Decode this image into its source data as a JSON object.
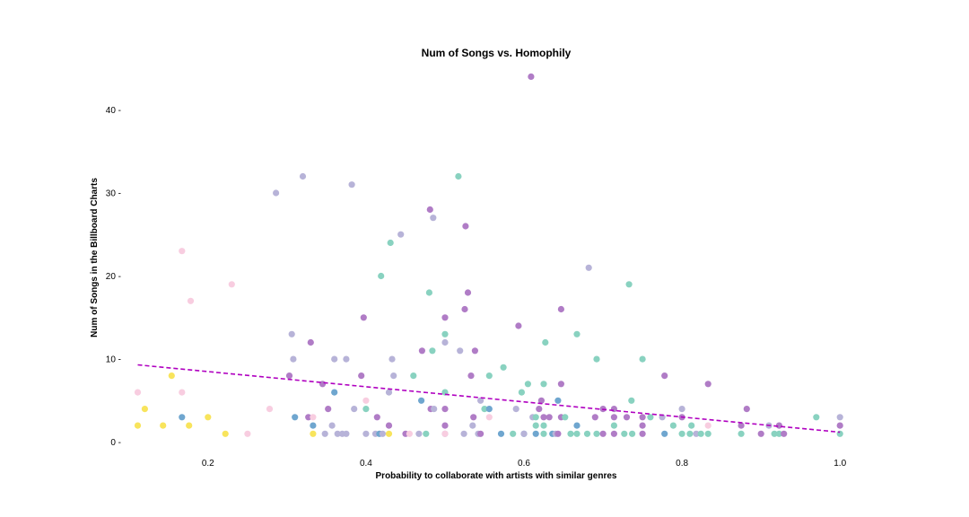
{
  "chart_data": {
    "type": "scatter",
    "title": "Num of Songs vs. Homophily",
    "xlabel": "Probability to collaborate with artists with similar genres",
    "ylabel": "Num of Songs in the Billboard Charts",
    "xlim": [
      0.09,
      1.01
    ],
    "ylim": [
      -0.8,
      44.8
    ],
    "xticks": [
      0.2,
      0.4,
      0.6,
      0.8,
      1.0
    ],
    "xtick_labels": [
      "0.2",
      "0.4",
      "0.6",
      "0.8",
      "1.0"
    ],
    "yticks": [
      0,
      10,
      20,
      30,
      40
    ],
    "ytick_labels": [
      "0 -",
      "10 -",
      "20 -",
      "30 -",
      "40 -"
    ],
    "grid": false,
    "legend": "none",
    "trendline": {
      "x": [
        0.111,
        1.0
      ],
      "y": [
        9.3,
        1.2
      ],
      "color": "#b000c0",
      "style": "dashed"
    },
    "colors": {
      "purple": "#b07cc6",
      "teal": "#89d2c0",
      "lavender": "#b7b3d8",
      "steel": "#6fa6cf",
      "pink": "#f8cde0",
      "yellow": "#f8e45c"
    },
    "points": [
      {
        "x": 0.111,
        "y": 6,
        "c": "pink"
      },
      {
        "x": 0.111,
        "y": 2,
        "c": "yellow"
      },
      {
        "x": 0.12,
        "y": 4,
        "c": "yellow"
      },
      {
        "x": 0.143,
        "y": 2,
        "c": "yellow"
      },
      {
        "x": 0.154,
        "y": 8,
        "c": "yellow"
      },
      {
        "x": 0.167,
        "y": 23,
        "c": "pink"
      },
      {
        "x": 0.167,
        "y": 6,
        "c": "pink"
      },
      {
        "x": 0.167,
        "y": 3,
        "c": "steel"
      },
      {
        "x": 0.176,
        "y": 2,
        "c": "yellow"
      },
      {
        "x": 0.178,
        "y": 17,
        "c": "pink"
      },
      {
        "x": 0.2,
        "y": 3,
        "c": "yellow"
      },
      {
        "x": 0.222,
        "y": 1,
        "c": "yellow"
      },
      {
        "x": 0.23,
        "y": 19,
        "c": "pink"
      },
      {
        "x": 0.25,
        "y": 1,
        "c": "pink"
      },
      {
        "x": 0.278,
        "y": 4,
        "c": "pink"
      },
      {
        "x": 0.286,
        "y": 30,
        "c": "lavender"
      },
      {
        "x": 0.303,
        "y": 8,
        "c": "purple"
      },
      {
        "x": 0.306,
        "y": 13,
        "c": "lavender"
      },
      {
        "x": 0.308,
        "y": 10,
        "c": "lavender"
      },
      {
        "x": 0.31,
        "y": 3,
        "c": "steel"
      },
      {
        "x": 0.32,
        "y": 32,
        "c": "lavender"
      },
      {
        "x": 0.327,
        "y": 3,
        "c": "purple"
      },
      {
        "x": 0.33,
        "y": 12,
        "c": "purple"
      },
      {
        "x": 0.333,
        "y": 3,
        "c": "pink"
      },
      {
        "x": 0.333,
        "y": 1,
        "c": "yellow"
      },
      {
        "x": 0.333,
        "y": 2,
        "c": "steel"
      },
      {
        "x": 0.345,
        "y": 7,
        "c": "purple"
      },
      {
        "x": 0.348,
        "y": 1,
        "c": "lavender"
      },
      {
        "x": 0.352,
        "y": 4,
        "c": "purple"
      },
      {
        "x": 0.357,
        "y": 2,
        "c": "lavender"
      },
      {
        "x": 0.36,
        "y": 10,
        "c": "lavender"
      },
      {
        "x": 0.36,
        "y": 6,
        "c": "steel"
      },
      {
        "x": 0.364,
        "y": 1,
        "c": "lavender"
      },
      {
        "x": 0.37,
        "y": 1,
        "c": "lavender"
      },
      {
        "x": 0.375,
        "y": 10,
        "c": "lavender"
      },
      {
        "x": 0.375,
        "y": 1,
        "c": "lavender"
      },
      {
        "x": 0.382,
        "y": 31,
        "c": "lavender"
      },
      {
        "x": 0.385,
        "y": 4,
        "c": "lavender"
      },
      {
        "x": 0.394,
        "y": 8,
        "c": "purple"
      },
      {
        "x": 0.397,
        "y": 15,
        "c": "purple"
      },
      {
        "x": 0.4,
        "y": 5,
        "c": "pink"
      },
      {
        "x": 0.4,
        "y": 4,
        "c": "teal"
      },
      {
        "x": 0.4,
        "y": 1,
        "c": "lavender"
      },
      {
        "x": 0.412,
        "y": 1,
        "c": "lavender"
      },
      {
        "x": 0.414,
        "y": 3,
        "c": "purple"
      },
      {
        "x": 0.417,
        "y": 1,
        "c": "steel"
      },
      {
        "x": 0.419,
        "y": 20,
        "c": "teal"
      },
      {
        "x": 0.421,
        "y": 1,
        "c": "lavender"
      },
      {
        "x": 0.429,
        "y": 6,
        "c": "lavender"
      },
      {
        "x": 0.429,
        "y": 2,
        "c": "purple"
      },
      {
        "x": 0.429,
        "y": 1,
        "c": "yellow"
      },
      {
        "x": 0.431,
        "y": 24,
        "c": "teal"
      },
      {
        "x": 0.433,
        "y": 10,
        "c": "lavender"
      },
      {
        "x": 0.435,
        "y": 8,
        "c": "lavender"
      },
      {
        "x": 0.444,
        "y": 25,
        "c": "lavender"
      },
      {
        "x": 0.45,
        "y": 1,
        "c": "purple"
      },
      {
        "x": 0.455,
        "y": 1,
        "c": "pink"
      },
      {
        "x": 0.46,
        "y": 8,
        "c": "teal"
      },
      {
        "x": 0.467,
        "y": 1,
        "c": "lavender"
      },
      {
        "x": 0.47,
        "y": 5,
        "c": "steel"
      },
      {
        "x": 0.471,
        "y": 11,
        "c": "purple"
      },
      {
        "x": 0.476,
        "y": 1,
        "c": "teal"
      },
      {
        "x": 0.48,
        "y": 18,
        "c": "teal"
      },
      {
        "x": 0.481,
        "y": 28,
        "c": "purple"
      },
      {
        "x": 0.482,
        "y": 4,
        "c": "purple"
      },
      {
        "x": 0.484,
        "y": 11,
        "c": "teal"
      },
      {
        "x": 0.485,
        "y": 27,
        "c": "lavender"
      },
      {
        "x": 0.486,
        "y": 4,
        "c": "lavender"
      },
      {
        "x": 0.5,
        "y": 15,
        "c": "purple"
      },
      {
        "x": 0.5,
        "y": 13,
        "c": "teal"
      },
      {
        "x": 0.5,
        "y": 12,
        "c": "lavender"
      },
      {
        "x": 0.5,
        "y": 6,
        "c": "teal"
      },
      {
        "x": 0.5,
        "y": 4,
        "c": "purple"
      },
      {
        "x": 0.5,
        "y": 2,
        "c": "purple"
      },
      {
        "x": 0.5,
        "y": 1,
        "c": "lavender"
      },
      {
        "x": 0.5,
        "y": 1,
        "c": "pink"
      },
      {
        "x": 0.517,
        "y": 32,
        "c": "teal"
      },
      {
        "x": 0.519,
        "y": 11,
        "c": "lavender"
      },
      {
        "x": 0.524,
        "y": 1,
        "c": "lavender"
      },
      {
        "x": 0.525,
        "y": 16,
        "c": "purple"
      },
      {
        "x": 0.526,
        "y": 26,
        "c": "purple"
      },
      {
        "x": 0.529,
        "y": 18,
        "c": "purple"
      },
      {
        "x": 0.533,
        "y": 8,
        "c": "purple"
      },
      {
        "x": 0.535,
        "y": 2,
        "c": "lavender"
      },
      {
        "x": 0.536,
        "y": 3,
        "c": "purple"
      },
      {
        "x": 0.538,
        "y": 11,
        "c": "purple"
      },
      {
        "x": 0.542,
        "y": 1,
        "c": "lavender"
      },
      {
        "x": 0.545,
        "y": 5,
        "c": "lavender"
      },
      {
        "x": 0.545,
        "y": 1,
        "c": "purple"
      },
      {
        "x": 0.55,
        "y": 4,
        "c": "teal"
      },
      {
        "x": 0.556,
        "y": 8,
        "c": "teal"
      },
      {
        "x": 0.556,
        "y": 4,
        "c": "steel"
      },
      {
        "x": 0.556,
        "y": 3,
        "c": "pink"
      },
      {
        "x": 0.571,
        "y": 1,
        "c": "steel"
      },
      {
        "x": 0.574,
        "y": 9,
        "c": "teal"
      },
      {
        "x": 0.586,
        "y": 1,
        "c": "teal"
      },
      {
        "x": 0.59,
        "y": 4,
        "c": "lavender"
      },
      {
        "x": 0.593,
        "y": 14,
        "c": "purple"
      },
      {
        "x": 0.597,
        "y": 6,
        "c": "teal"
      },
      {
        "x": 0.6,
        "y": 1,
        "c": "steel"
      },
      {
        "x": 0.6,
        "y": 1,
        "c": "lavender"
      },
      {
        "x": 0.605,
        "y": 7,
        "c": "teal"
      },
      {
        "x": 0.609,
        "y": 44,
        "c": "purple"
      },
      {
        "x": 0.611,
        "y": 3,
        "c": "lavender"
      },
      {
        "x": 0.615,
        "y": 3,
        "c": "teal"
      },
      {
        "x": 0.615,
        "y": 2,
        "c": "teal"
      },
      {
        "x": 0.615,
        "y": 1,
        "c": "steel"
      },
      {
        "x": 0.619,
        "y": 4,
        "c": "purple"
      },
      {
        "x": 0.622,
        "y": 5,
        "c": "purple"
      },
      {
        "x": 0.625,
        "y": 7,
        "c": "teal"
      },
      {
        "x": 0.625,
        "y": 3,
        "c": "purple"
      },
      {
        "x": 0.625,
        "y": 2,
        "c": "teal"
      },
      {
        "x": 0.625,
        "y": 1,
        "c": "teal"
      },
      {
        "x": 0.627,
        "y": 12,
        "c": "teal"
      },
      {
        "x": 0.632,
        "y": 3,
        "c": "purple"
      },
      {
        "x": 0.636,
        "y": 1,
        "c": "steel"
      },
      {
        "x": 0.64,
        "y": 1,
        "c": "lavender"
      },
      {
        "x": 0.643,
        "y": 5,
        "c": "steel"
      },
      {
        "x": 0.643,
        "y": 1,
        "c": "purple"
      },
      {
        "x": 0.647,
        "y": 16,
        "c": "purple"
      },
      {
        "x": 0.647,
        "y": 7,
        "c": "purple"
      },
      {
        "x": 0.647,
        "y": 3,
        "c": "purple"
      },
      {
        "x": 0.652,
        "y": 3,
        "c": "teal"
      },
      {
        "x": 0.659,
        "y": 1,
        "c": "teal"
      },
      {
        "x": 0.667,
        "y": 13,
        "c": "teal"
      },
      {
        "x": 0.667,
        "y": 2,
        "c": "steel"
      },
      {
        "x": 0.667,
        "y": 1,
        "c": "teal"
      },
      {
        "x": 0.68,
        "y": 1,
        "c": "teal"
      },
      {
        "x": 0.682,
        "y": 21,
        "c": "lavender"
      },
      {
        "x": 0.69,
        "y": 3,
        "c": "purple"
      },
      {
        "x": 0.692,
        "y": 10,
        "c": "teal"
      },
      {
        "x": 0.692,
        "y": 1,
        "c": "teal"
      },
      {
        "x": 0.7,
        "y": 4,
        "c": "purple"
      },
      {
        "x": 0.7,
        "y": 1,
        "c": "purple"
      },
      {
        "x": 0.714,
        "y": 4,
        "c": "purple"
      },
      {
        "x": 0.714,
        "y": 3,
        "c": "purple"
      },
      {
        "x": 0.714,
        "y": 2,
        "c": "teal"
      },
      {
        "x": 0.714,
        "y": 1,
        "c": "purple"
      },
      {
        "x": 0.727,
        "y": 1,
        "c": "teal"
      },
      {
        "x": 0.73,
        "y": 3,
        "c": "purple"
      },
      {
        "x": 0.733,
        "y": 19,
        "c": "teal"
      },
      {
        "x": 0.736,
        "y": 5,
        "c": "teal"
      },
      {
        "x": 0.737,
        "y": 1,
        "c": "teal"
      },
      {
        "x": 0.75,
        "y": 10,
        "c": "teal"
      },
      {
        "x": 0.75,
        "y": 3,
        "c": "purple"
      },
      {
        "x": 0.75,
        "y": 2,
        "c": "purple"
      },
      {
        "x": 0.75,
        "y": 1,
        "c": "purple"
      },
      {
        "x": 0.76,
        "y": 3,
        "c": "teal"
      },
      {
        "x": 0.775,
        "y": 3,
        "c": "lavender"
      },
      {
        "x": 0.778,
        "y": 8,
        "c": "purple"
      },
      {
        "x": 0.778,
        "y": 1,
        "c": "steel"
      },
      {
        "x": 0.789,
        "y": 2,
        "c": "teal"
      },
      {
        "x": 0.8,
        "y": 4,
        "c": "lavender"
      },
      {
        "x": 0.8,
        "y": 3,
        "c": "purple"
      },
      {
        "x": 0.8,
        "y": 1,
        "c": "teal"
      },
      {
        "x": 0.81,
        "y": 1,
        "c": "teal"
      },
      {
        "x": 0.812,
        "y": 2,
        "c": "teal"
      },
      {
        "x": 0.818,
        "y": 1,
        "c": "lavender"
      },
      {
        "x": 0.824,
        "y": 1,
        "c": "teal"
      },
      {
        "x": 0.833,
        "y": 7,
        "c": "purple"
      },
      {
        "x": 0.833,
        "y": 2,
        "c": "pink"
      },
      {
        "x": 0.833,
        "y": 1,
        "c": "teal"
      },
      {
        "x": 0.875,
        "y": 2,
        "c": "purple"
      },
      {
        "x": 0.875,
        "y": 1,
        "c": "teal"
      },
      {
        "x": 0.882,
        "y": 4,
        "c": "purple"
      },
      {
        "x": 0.9,
        "y": 1,
        "c": "purple"
      },
      {
        "x": 0.91,
        "y": 2,
        "c": "lavender"
      },
      {
        "x": 0.917,
        "y": 1,
        "c": "teal"
      },
      {
        "x": 0.923,
        "y": 2,
        "c": "purple"
      },
      {
        "x": 0.923,
        "y": 1,
        "c": "teal"
      },
      {
        "x": 0.929,
        "y": 1,
        "c": "purple"
      },
      {
        "x": 0.97,
        "y": 3,
        "c": "teal"
      },
      {
        "x": 1.0,
        "y": 3,
        "c": "lavender"
      },
      {
        "x": 1.0,
        "y": 2,
        "c": "purple"
      },
      {
        "x": 1.0,
        "y": 1,
        "c": "teal"
      }
    ]
  }
}
